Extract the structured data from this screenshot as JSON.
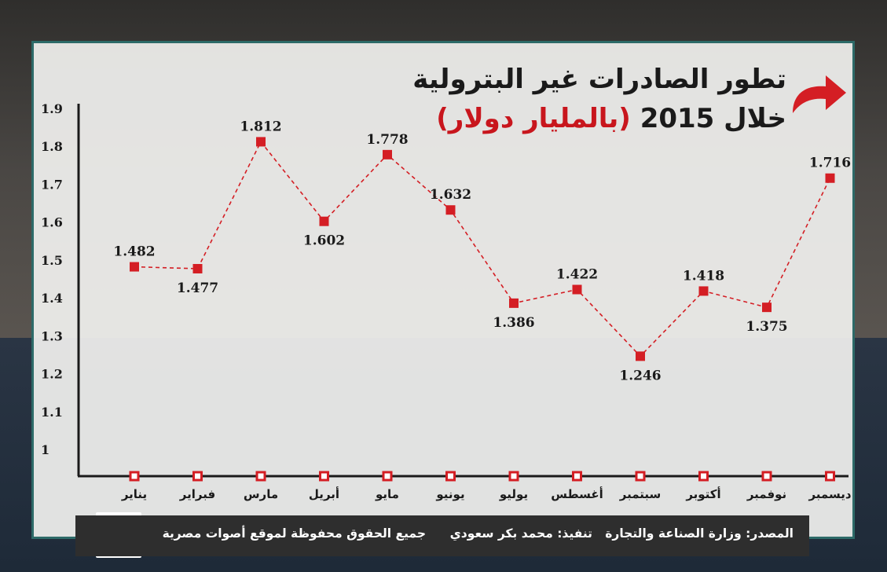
{
  "title": {
    "line1": "تطور الصادرات غير البترولية",
    "line2_main": "خلال 2015",
    "line2_highlight": "(بالمليار دولار)"
  },
  "chart_data": {
    "type": "line",
    "categories": [
      "يناير",
      "فبراير",
      "مارس",
      "أبريل",
      "مايو",
      "يونيو",
      "يوليو",
      "أغسطس",
      "سبتمبر",
      "أكتوبر",
      "نوفمبر",
      "ديسمبر"
    ],
    "values": [
      1.482,
      1.477,
      1.812,
      1.602,
      1.778,
      1.632,
      1.386,
      1.422,
      1.246,
      1.418,
      1.375,
      1.716
    ],
    "value_labels": [
      "1.482",
      "1.477",
      "1.812",
      "1.602",
      "1.778",
      "1.632",
      "1.386",
      "1.422",
      "1.246",
      "1.418",
      "1.375",
      "1.716"
    ],
    "yticks": [
      "1",
      "1.1",
      "1.2",
      "1.3",
      "1.4",
      "1.5",
      "1.6",
      "1.7",
      "1.8",
      "1.9"
    ],
    "ylim": [
      1,
      1.9
    ],
    "line_style": "dashed",
    "colors": {
      "line": "#d41e24",
      "marker": "#d41e24",
      "axis": "#1a1a1a"
    }
  },
  "footer": {
    "source": "المصدر: وزارة الصناعة والتجارة",
    "design": "تنفيذ: محمد بكر سعودي",
    "rights": "جميع الحقوق محفوظة لموقع أصوات مصرية"
  },
  "logo": {
    "text": "أصوات مصرية"
  },
  "colors": {
    "accent": "#c8161d",
    "panel_border": "#2d6a68",
    "footer_bg": "#2e2e2e"
  }
}
